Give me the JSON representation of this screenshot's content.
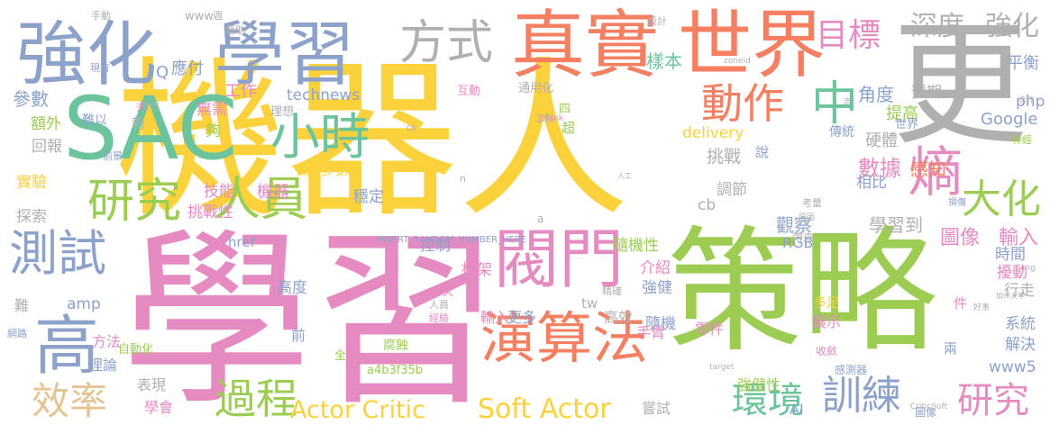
{
  "words": [
    {
      "text": "機器人",
      "color": "#fbd23c"
    },
    {
      "text": "學習",
      "color": "#e68bc1"
    },
    {
      "text": "策略",
      "color": "#9ccd52"
    },
    {
      "text": "更",
      "color": "#b0b0b0"
    },
    {
      "text": "SAC",
      "color": "#6cc49c"
    },
    {
      "text": "強化",
      "color": "#8da2cb"
    },
    {
      "text": "學習",
      "color": "#8da2cb"
    },
    {
      "text": "真實",
      "color": "#f47f61"
    },
    {
      "text": "世界",
      "color": "#f47f61"
    },
    {
      "text": "方式",
      "color": "#b0b0b0"
    },
    {
      "text": "閥門",
      "color": "#e68bc1"
    },
    {
      "text": "演算法",
      "color": "#f47f61"
    },
    {
      "text": "研究",
      "color": "#9ccd52"
    },
    {
      "text": "人員",
      "color": "#9ccd52"
    },
    {
      "text": "小時",
      "color": "#6cc49c"
    },
    {
      "text": "測試",
      "color": "#8da2cb"
    },
    {
      "text": "高",
      "color": "#8da2cb"
    },
    {
      "text": "效率",
      "color": "#e5c494"
    },
    {
      "text": "過程",
      "color": "#9ccd52"
    },
    {
      "text": "熵",
      "color": "#e68bc1"
    },
    {
      "text": "大化",
      "color": "#9ccd52"
    },
    {
      "text": "動作",
      "color": "#f47f61"
    },
    {
      "text": "中",
      "color": "#6cc49c"
    },
    {
      "text": "目標",
      "color": "#e68bc1"
    },
    {
      "text": "深度",
      "color": "#b0b0b0"
    },
    {
      "text": "強化",
      "color": "#b0b0b0"
    },
    {
      "text": "訓練",
      "color": "#8da2cb"
    },
    {
      "text": "研究",
      "color": "#e68bc1"
    },
    {
      "text": "環境",
      "color": "#6cc49c"
    },
    {
      "text": "Actor Critic",
      "color": "#fbd23c"
    },
    {
      "text": "Soft Actor",
      "color": "#fbd23c"
    },
    {
      "text": "數據",
      "color": "#e68bc1"
    },
    {
      "text": "圖像",
      "color": "#e68bc1"
    },
    {
      "text": "輸入",
      "color": "#e68bc1"
    },
    {
      "text": "樣本",
      "color": "#6cc49c"
    },
    {
      "text": "角度",
      "color": "#8da2cb"
    },
    {
      "text": "挑戰",
      "color": "#b0b0b0"
    },
    {
      "text": "感知",
      "color": "#f47f61"
    },
    {
      "text": "觀察",
      "color": "#8da2cb"
    },
    {
      "text": "學習到",
      "color": "#b0b0b0"
    },
    {
      "text": "參數",
      "color": "#8da2cb"
    },
    {
      "text": "工作",
      "color": "#e68bc1"
    },
    {
      "text": "應付",
      "color": "#8da2cb"
    },
    {
      "text": "technews",
      "color": "#8da2cb"
    },
    {
      "text": "Google",
      "color": "#8da2cb"
    },
    {
      "text": "php",
      "color": "#8da2cb"
    },
    {
      "text": "平衡",
      "color": "#8da2cb"
    },
    {
      "text": "提高",
      "color": "#9ccd52"
    },
    {
      "text": "預期",
      "color": "#b0b0b0"
    },
    {
      "text": "硬體",
      "color": "#b0b0b0"
    },
    {
      "text": "相比",
      "color": "#8da2cb"
    },
    {
      "text": "delivery",
      "color": "#fbd23c"
    },
    {
      "text": "調節",
      "color": "#b0b0b0"
    },
    {
      "text": "超參數",
      "color": "#fbd23c"
    },
    {
      "text": "機器",
      "color": "#e68bc1"
    },
    {
      "text": "技能",
      "color": "#e68bc1"
    },
    {
      "text": "挑戰性",
      "color": "#e68bc1"
    },
    {
      "text": "穩定",
      "color": "#8da2cb"
    },
    {
      "text": "實驗",
      "color": "#fbd23c"
    },
    {
      "text": "探索",
      "color": "#b0b0b0"
    },
    {
      "text": "回報",
      "color": "#b0b0b0"
    },
    {
      "text": "額外",
      "color": "#9ccd52"
    },
    {
      "text": "無需",
      "color": "#e68bc1"
    },
    {
      "text": "夠",
      "color": "#9ccd52"
    },
    {
      "text": "框架",
      "color": "#e68bc1"
    },
    {
      "text": "隨機性",
      "color": "#9ccd52"
    },
    {
      "text": "隨機",
      "color": "#8da2cb"
    },
    {
      "text": "介紹",
      "color": "#e68bc1"
    },
    {
      "text": "強健",
      "color": "#8da2cb"
    },
    {
      "text": "控制",
      "color": "#8da2cb"
    },
    {
      "text": "高度",
      "color": "#8da2cb"
    },
    {
      "text": "amp",
      "color": "#8da2cb"
    },
    {
      "text": "cb",
      "color": "#b0b0b0"
    },
    {
      "text": "RGB",
      "color": "#8da2cb"
    },
    {
      "text": "時間",
      "color": "#8da2cb"
    },
    {
      "text": "擾動",
      "color": "#e68bc1"
    },
    {
      "text": "行走",
      "color": "#b0b0b0"
    },
    {
      "text": "系統",
      "color": "#8da2cb"
    },
    {
      "text": "解決",
      "color": "#8da2cb"
    },
    {
      "text": "www5",
      "color": "#8da2cb"
    },
    {
      "text": "展示",
      "color": "#e68bc1"
    },
    {
      "text": "零件",
      "color": "#e68bc1"
    },
    {
      "text": "更多",
      "color": "#8da2cb"
    },
    {
      "text": "輸入",
      "color": "#e68bc1"
    },
    {
      "text": "高效",
      "color": "#b0b0b0"
    },
    {
      "text": "手臂",
      "color": "#e68bc1"
    },
    {
      "text": "強健性",
      "color": "#9ccd52"
    },
    {
      "text": "AI",
      "color": "#8da2cb"
    },
    {
      "text": "嘗試",
      "color": "#b0b0b0"
    },
    {
      "text": "表現",
      "color": "#b0b0b0"
    },
    {
      "text": "學會",
      "color": "#e68bc1"
    },
    {
      "text": "方法",
      "color": "#e68bc1"
    },
    {
      "text": "理論",
      "color": "#8da2cb"
    },
    {
      "text": "難",
      "color": "#b0b0b0"
    },
    {
      "text": "前",
      "color": "#8da2cb"
    },
    {
      "text": "自動化",
      "color": "#9ccd52"
    },
    {
      "text": "腐蝕",
      "color": "#9ccd52"
    },
    {
      "text": "a4b3f35b",
      "color": "#9ccd52"
    },
    {
      "text": "INSERT_RANDOM_NUMBER_HERE",
      "color": "#8da2cb"
    },
    {
      "text": "href",
      "color": "#8da2cb"
    },
    {
      "text": "www",
      "color": "#b0b0b0"
    },
    {
      "text": "週",
      "color": "#b0b0b0"
    },
    {
      "text": "新",
      "color": "#b0b0b0"
    },
    {
      "text": "超",
      "color": "#9ccd52"
    },
    {
      "text": "四",
      "color": "#9ccd52"
    },
    {
      "text": "說",
      "color": "#8da2cb"
    },
    {
      "text": "世界",
      "color": "#8da2cb"
    },
    {
      "text": "傳統",
      "color": "#8da2cb"
    },
    {
      "text": "件",
      "color": "#e68bc1"
    },
    {
      "text": "兩",
      "color": "#8da2cb"
    },
    {
      "text": "多足",
      "color": "#fbd23c"
    },
    {
      "text": "收斂",
      "color": "#e68bc1"
    },
    {
      "text": "感測器",
      "color": "#8da2cb"
    },
    {
      "text": "圖像",
      "color": "#8da2cb"
    },
    {
      "text": "帶來",
      "color": "#b0b0b0"
    },
    {
      "text": "工程",
      "color": "#b0b0b0"
    },
    {
      "text": "互動",
      "color": "#e68bc1"
    },
    {
      "text": "通用化",
      "color": "#b0b0b0"
    },
    {
      "text": "理想",
      "color": "#b0b0b0"
    },
    {
      "text": "時代",
      "color": "#b0b0b0"
    },
    {
      "text": "設計",
      "color": "#b0b0b0"
    },
    {
      "text": "手動",
      "color": "#b0b0b0"
    },
    {
      "text": "藉助",
      "color": "#b0b0b0"
    },
    {
      "text": "現有",
      "color": "#8da2cb"
    },
    {
      "text": "前景",
      "color": "#8da2cb"
    },
    {
      "text": "網路",
      "color": "#8da2cb"
    },
    {
      "text": "經驗",
      "color": "#e68bc1"
    },
    {
      "text": "人員",
      "color": "#b0b0b0"
    },
    {
      "text": "精確",
      "color": "#b0b0b0"
    },
    {
      "text": "神經",
      "color": "#9ccd52"
    },
    {
      "text": "合作",
      "color": "#b0b0b0"
    },
    {
      "text": "損傷",
      "color": "#8da2cb"
    },
    {
      "text": "考量",
      "color": "#b0b0b0"
    },
    {
      "text": "原因",
      "color": "#b0b0b0"
    },
    {
      "text": "target",
      "color": "#b0b0b0"
    },
    {
      "text": "ck",
      "color": "#b0b0b0"
    },
    {
      "text": "zoneid",
      "color": "#b0b0b0"
    },
    {
      "text": "img",
      "color": "#b0b0b0"
    },
    {
      "text": "Q",
      "color": "#8da2cb"
    },
    {
      "text": "tw",
      "color": "#b0b0b0"
    },
    {
      "text": "n",
      "color": "#b0b0b0"
    },
    {
      "text": "a",
      "color": "#b0b0b0"
    },
    {
      "text": "_blank",
      "color": "#e68bc1"
    },
    {
      "text": "人工",
      "color": "#b0b0b0"
    },
    {
      "text": "加州大學",
      "color": "#b0b0b0"
    },
    {
      "text": "CriticSoft",
      "color": "#b0b0b0"
    },
    {
      "text": "好事",
      "color": "#b0b0b0"
    },
    {
      "text": "流",
      "color": "#b0b0b0"
    },
    {
      "text": "天",
      "color": "#e68bc1"
    },
    {
      "text": "難以",
      "color": "#8da2cb"
    },
    {
      "text": "久",
      "color": "#e68bc1"
    },
    {
      "text": "全",
      "color": "#9ccd52"
    }
  ]
}
